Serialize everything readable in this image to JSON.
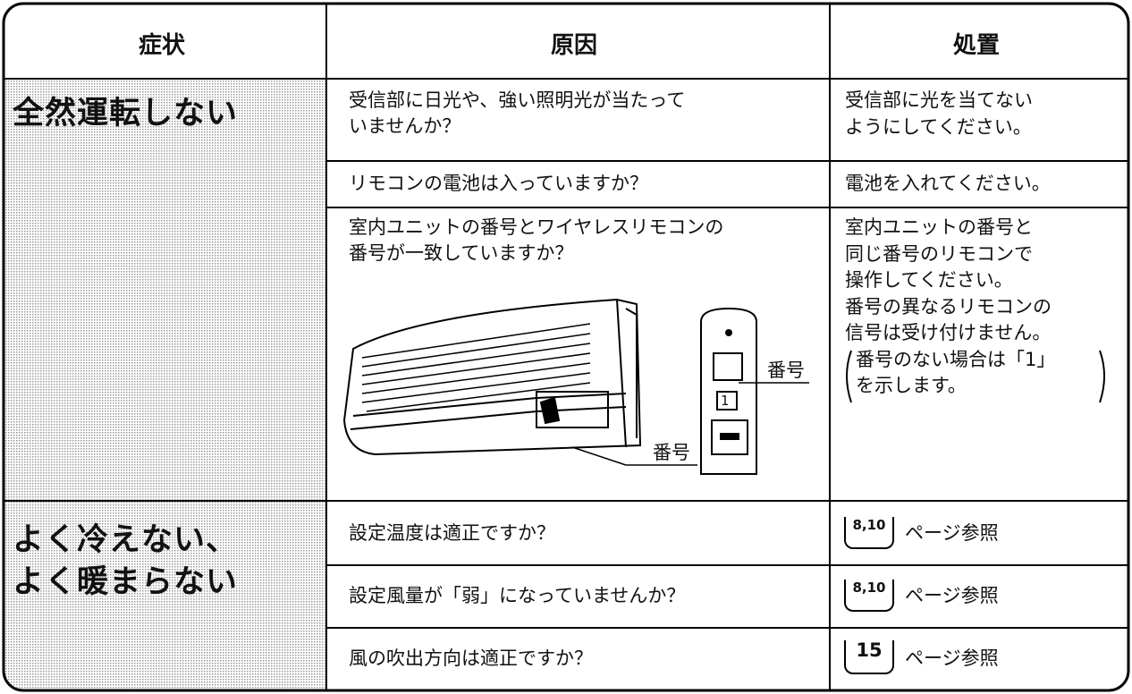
{
  "table": {
    "headers": [
      "症状",
      "原因",
      "処置"
    ],
    "groups": [
      {
        "symptom": [
          "全然運転しない"
        ],
        "rows": [
          {
            "cause": [
              "受信部に日光や、強い照明光が当たって",
              "いませんか？"
            ],
            "remedy": [
              "受信部に光を当てない",
              "ようにしてください。"
            ]
          },
          {
            "cause": [
              "リモコンの電池は入っていますか？"
            ],
            "remedy": [
              "電池を入れてください。"
            ]
          },
          {
            "cause": [
              "室内ユニットの番号とワイヤレスリモコンの",
              "番号が一致していますか？"
            ],
            "remedy": [
              "室内ユニットの番号と",
              "同じ番号のリモコンで",
              "操作してください。",
              "番号の異なるリモコンの",
              "信号は受け付けません。",
              "番号のない場合は「1」",
              "を示します。"
            ]
          }
        ]
      },
      {
        "symptom": [
          "よく冷えない、",
          "よく暖まらない"
        ],
        "rows": [
          {
            "cause": [
              "設定温度は適正ですか？"
            ],
            "remedy": {
              "page_ref": "8,10",
              "text": "ページ参照"
            }
          },
          {
            "cause": [
              "設定風量が「弱」になっていませんか？"
            ],
            "remedy": {
              "page_ref": "8,10",
              "text": "ページ参照"
            }
          },
          {
            "cause": [
              "風の吹出方向は適正ですか？"
            ],
            "remedy": {
              "page_ref": "15",
              "text": "ページ参照"
            }
          }
        ]
      }
    ]
  },
  "illustration": {
    "remote_number": "1",
    "labels": [
      "番号",
      "番号"
    ]
  }
}
